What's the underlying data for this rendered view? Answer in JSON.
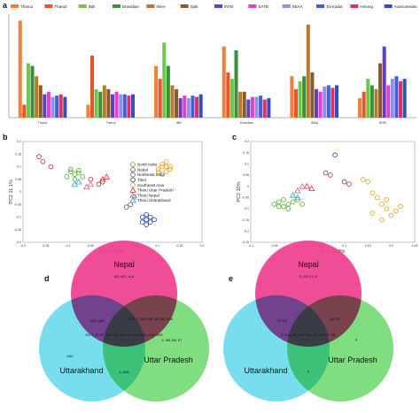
{
  "panels": {
    "a": "a",
    "b": "b",
    "c": "c",
    "d": "d",
    "e": "e"
  },
  "chart_data": [
    {
      "panel": "a",
      "type": "bar",
      "legend_position": "top",
      "series_names": [
        "Tharu1",
        "Tharu2",
        "INB",
        "Dravidian",
        "INAA",
        "Spiti",
        "INTB",
        "SATB",
        "SEAA",
        "Tai Kadai",
        "Hmong",
        "Austronesian"
      ],
      "colors": [
        "#f07f3c",
        "#e8542c",
        "#6cc74a",
        "#3a8f3a",
        "#b87a2e",
        "#8b5a2b",
        "#6040c0",
        "#e040d0",
        "#9090e8",
        "#4060d8",
        "#e03060",
        "#3050c0"
      ],
      "groups": [
        {
          "label": "Tharu1",
          "values": [
            0.95,
            0.3,
            0.62,
            0.6,
            0.52,
            0.45,
            0.38,
            0.4,
            0.36,
            0.37,
            0.38,
            0.36
          ]
        },
        {
          "label": "Tharu2",
          "values": [
            0.3,
            0.68,
            0.42,
            0.4,
            0.45,
            0.42,
            0.38,
            0.4,
            0.38,
            0.38,
            0.37,
            0.38
          ]
        },
        {
          "label": "INB",
          "values": [
            0.6,
            0.5,
            0.78,
            0.6,
            0.45,
            0.42,
            0.35,
            0.37,
            0.35,
            0.37,
            0.36,
            0.38
          ]
        },
        {
          "label": "Dravidian",
          "values": [
            0.75,
            0.55,
            0.5,
            0.72,
            0.4,
            0.4,
            0.34,
            0.36,
            0.36,
            0.37,
            0.34,
            0.35
          ]
        },
        {
          "label": "INAA",
          "values": [
            0.52,
            0.42,
            0.48,
            0.52,
            0.92,
            0.55,
            0.42,
            0.4,
            0.44,
            0.45,
            0.43,
            0.45
          ]
        },
        {
          "label": "INTB",
          "values": [
            0.35,
            0.4,
            0.5,
            0.45,
            0.42,
            0.62,
            0.75,
            0.45,
            0.5,
            0.52,
            0.48,
            0.5
          ]
        }
      ],
      "ylim": [
        0.2,
        1.0
      ]
    },
    {
      "panel": "b",
      "type": "scatter",
      "xlabel": "PC1  14.5%",
      "ylabel": "PC2  11.1%",
      "xlim": [
        -0.25,
        0.2
      ],
      "ylim": [
        -0.2,
        0.2
      ],
      "xticks": [
        "-0.2",
        "-0.15",
        "-0.1",
        "-0.05",
        "0",
        "0.05",
        "0.1",
        "0.15",
        "0.2"
      ],
      "yticks": [
        "0.2",
        "0.15",
        "0.1",
        "0.05",
        "0",
        "-0.05",
        "-0.1",
        "-0.15",
        "-0.2"
      ],
      "legend": [
        "North India",
        "Nepal",
        "Northeast India",
        "Tibet",
        "Southeast Asia",
        "Tharu Uttar Pradesh",
        "Tharu Nepal",
        "Tharu Uttarakhand"
      ],
      "series": [
        {
          "name": "North India",
          "color": "#4caf2a",
          "marker": "circle",
          "points": [
            [
              -0.13,
              0.08
            ],
            [
              -0.12,
              0.07
            ],
            [
              -0.11,
              0.075
            ],
            [
              -0.14,
              0.06
            ],
            [
              -0.12,
              0.05
            ],
            [
              -0.1,
              0.06
            ],
            [
              -0.13,
              0.09
            ],
            [
              -0.11,
              0.085
            ]
          ]
        },
        {
          "name": "Nepal",
          "color": "#b03030",
          "marker": "circle",
          "points": [
            [
              -0.21,
              0.14
            ],
            [
              -0.2,
              0.12
            ],
            [
              -0.18,
              0.1
            ],
            [
              -0.08,
              0.05
            ],
            [
              -0.06,
              0.03
            ],
            [
              -0.05,
              0.04
            ]
          ]
        },
        {
          "name": "Northeast India",
          "color": "#606060",
          "marker": "circle",
          "points": [
            [
              0.02,
              -0.05
            ],
            [
              0.03,
              -0.02
            ],
            [
              0.01,
              -0.06
            ]
          ]
        },
        {
          "name": "Tibet",
          "color": "#2040c0",
          "marker": "circle",
          "points": [
            [
              0.05,
              -0.1
            ],
            [
              0.06,
              -0.11
            ],
            [
              0.07,
              -0.12
            ],
            [
              0.06,
              -0.09
            ],
            [
              0.05,
              -0.12
            ],
            [
              0.07,
              -0.1
            ],
            [
              0.08,
              -0.11
            ],
            [
              0.06,
              -0.13
            ]
          ]
        },
        {
          "name": "Southeast Asia",
          "color": "#e0a020",
          "marker": "circle",
          "points": [
            [
              0.09,
              0.09
            ],
            [
              0.1,
              0.1
            ],
            [
              0.11,
              0.08
            ],
            [
              0.1,
              0.11
            ],
            [
              0.12,
              0.1
            ],
            [
              0.11,
              0.12
            ],
            [
              0.09,
              0.08
            ],
            [
              0.12,
              0.09
            ],
            [
              0.1,
              0.07
            ],
            [
              0.11,
              0.1
            ]
          ]
        },
        {
          "name": "Tharu Uttar Pradesh",
          "color": "#e03030",
          "marker": "triangle",
          "points": [
            [
              -0.05,
              0.05
            ],
            [
              -0.04,
              0.06
            ]
          ]
        },
        {
          "name": "Tharu Nepal",
          "color": "#d060a0",
          "marker": "triangle",
          "points": [
            [
              -0.09,
              0.02
            ],
            [
              -0.08,
              0.03
            ]
          ]
        },
        {
          "name": "Tharu Uttarakhand",
          "color": "#30a0e0",
          "marker": "triangle",
          "points": [
            [
              -0.12,
              0.03
            ],
            [
              -0.11,
              0.04
            ]
          ]
        }
      ]
    },
    {
      "panel": "c",
      "type": "scatter",
      "xlabel": "PC1  13.9%",
      "ylabel": "PC2  10%",
      "xlim": [
        -0.1,
        0.25
      ],
      "ylim": [
        -0.25,
        0.2
      ],
      "xticks": [
        "-0.1",
        "-0.05",
        "0",
        "0.05",
        "0.1",
        "0.15",
        "0.2",
        "0.25"
      ],
      "yticks": [
        "0.2",
        "0.15",
        "0.1",
        "0.05",
        "0",
        "-0.05",
        "-0.1",
        "-0.15",
        "-0.2",
        "-0.25"
      ],
      "series": [
        {
          "name": "North India",
          "color": "#4caf2a",
          "marker": "circle",
          "points": [
            [
              -0.05,
              -0.08
            ],
            [
              -0.04,
              -0.07
            ],
            [
              -0.03,
              -0.09
            ],
            [
              -0.02,
              -0.08
            ],
            [
              -0.01,
              -0.07
            ],
            [
              0.0,
              -0.06
            ],
            [
              -0.03,
              -0.06
            ],
            [
              -0.02,
              -0.1
            ],
            [
              -0.04,
              -0.09
            ],
            [
              0.01,
              -0.08
            ]
          ]
        },
        {
          "name": "Nepal",
          "color": "#b03030",
          "marker": "circle",
          "points": [
            [
              0.06,
              0.06
            ],
            [
              0.07,
              0.05
            ],
            [
              0.1,
              0.02
            ],
            [
              0.11,
              0.01
            ]
          ]
        },
        {
          "name": "Tibet",
          "color": "#2040c0",
          "marker": "circle",
          "points": [
            [
              0.08,
              0.14
            ]
          ]
        },
        {
          "name": "Southeast Asia",
          "color": "#e0a020",
          "marker": "circle",
          "points": [
            [
              0.14,
              0.03
            ],
            [
              0.15,
              0.02
            ],
            [
              0.16,
              -0.03
            ],
            [
              0.17,
              -0.05
            ],
            [
              0.18,
              -0.08
            ],
            [
              0.19,
              -0.1
            ],
            [
              0.16,
              -0.12
            ],
            [
              0.2,
              -0.13
            ],
            [
              0.18,
              -0.15
            ],
            [
              0.21,
              -0.11
            ],
            [
              0.19,
              -0.06
            ],
            [
              0.22,
              -0.09
            ]
          ]
        },
        {
          "name": "Tharu Uttar Pradesh",
          "color": "#e03030",
          "marker": "triangle",
          "points": [
            [
              0.02,
              0.0
            ],
            [
              0.03,
              -0.01
            ]
          ]
        },
        {
          "name": "Tharu Nepal",
          "color": "#d060a0",
          "marker": "triangle",
          "points": [
            [
              0.0,
              -0.02
            ],
            [
              0.01,
              0.0
            ]
          ]
        },
        {
          "name": "Tharu Uttarakhand",
          "color": "#30a0e0",
          "marker": "triangle",
          "points": [
            [
              -0.01,
              -0.04
            ],
            [
              0.0,
              -0.05
            ]
          ]
        }
      ]
    },
    {
      "panel": "d",
      "type": "venn",
      "sets": [
        "Nepal",
        "Uttarakhand",
        "Uttar Pradesh"
      ],
      "colors": [
        "#ee3a8c",
        "#3ed0e8",
        "#4ad04a"
      ],
      "regions": {
        "nepal_only": "M5, M70, U1a",
        "nepal_uttarakhand": "M31, M50",
        "nepal_uttarpradesh": "M33, C, M30, M5, M8, M6, M38",
        "all_three": "M3, D, R, M7, M30, M3, M4, M6, M48, M38, M35, M45",
        "uttarakhand_only": "M40",
        "uttarpradesh_only": "K, M8, M6, R7",
        "uttarakhand_uttarpradesh": "A, M30"
      }
    },
    {
      "panel": "e",
      "type": "venn",
      "sets": [
        "Nepal",
        "Uttarakhand",
        "Uttar Pradesh"
      ],
      "colors": [
        "#ee3a8c",
        "#3ed0e8",
        "#4ad04a"
      ],
      "regions": {
        "nepal_only": "D, D5, F1, R",
        "nepal_uttarakhand": "C5, D6",
        "nepal_uttarpradesh": "A5, D5",
        "all_three": "F, D4a, D6, D4b, D5a, D1, D4b, G, M5",
        "uttarakhand_only": "",
        "uttarpradesh_only": "P",
        "uttarakhand_uttarpradesh": "F"
      }
    }
  ]
}
